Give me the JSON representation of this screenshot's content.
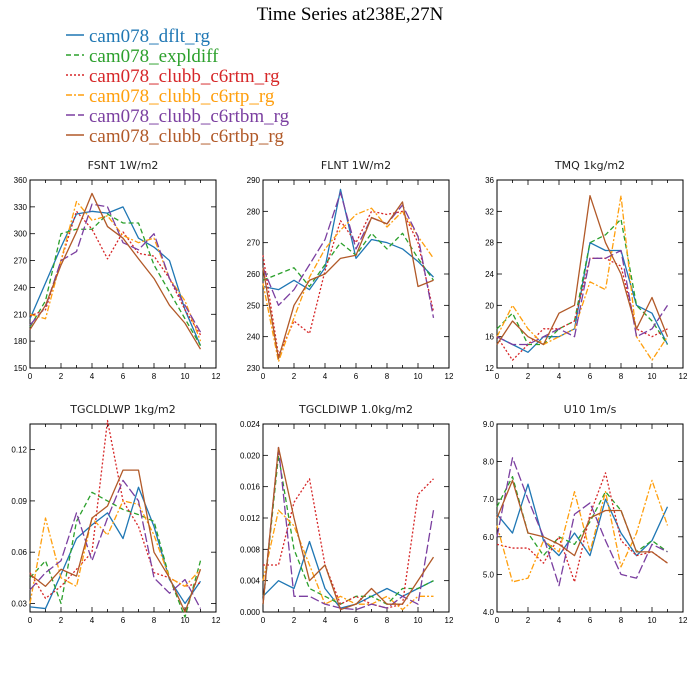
{
  "figure_title": "Time Series at238E,27N",
  "legend": [
    {
      "label": "cam078_dflt_rg",
      "color": "#1f77b4",
      "dash": "solid"
    },
    {
      "label": "cam078_expldiff",
      "color": "#2ca02c",
      "dash": "dashed"
    },
    {
      "label": "cam078_clubb_c6rtm_rg",
      "color": "#d62728",
      "dash": "dotted"
    },
    {
      "label": "cam078_clubb_c6rtp_rg",
      "color": "#ff9f0e",
      "dash": "dashdot"
    },
    {
      "label": "cam078_clubb_c6rtbm_rg",
      "color": "#7b3fa0",
      "dash": "longdash"
    },
    {
      "label": "cam078_clubb_c6rtbp_rg",
      "color": "#b15928",
      "dash": "solid"
    }
  ],
  "chart_data": [
    {
      "type": "line",
      "title": "FSNT 1W/m2",
      "x": [
        0,
        1,
        2,
        3,
        4,
        5,
        6,
        7,
        8,
        9,
        10,
        11
      ],
      "xlim": [
        0,
        12
      ],
      "xticks": [
        "0",
        "2",
        "4",
        "6",
        "8",
        "10",
        "12"
      ],
      "ylim": [
        150,
        360
      ],
      "yticks": [
        "150",
        "180",
        "210",
        "240",
        "270",
        "300",
        "330",
        "360"
      ],
      "series": [
        {
          "values": [
            205,
            245,
            285,
            322,
            325,
            323,
            330,
            295,
            285,
            270,
            215,
            175
          ]
        },
        {
          "values": [
            196,
            225,
            300,
            305,
            305,
            322,
            312,
            312,
            265,
            235,
            205,
            175
          ]
        },
        {
          "values": [
            208,
            215,
            270,
            325,
            305,
            272,
            302,
            278,
            275,
            250,
            215,
            187
          ]
        },
        {
          "values": [
            210,
            205,
            270,
            336,
            315,
            320,
            298,
            290,
            295,
            250,
            225,
            180
          ]
        },
        {
          "values": [
            198,
            218,
            270,
            280,
            333,
            330,
            290,
            282,
            300,
            250,
            220,
            190
          ]
        },
        {
          "values": [
            193,
            220,
            265,
            302,
            345,
            308,
            295,
            272,
            250,
            220,
            200,
            171
          ]
        }
      ]
    },
    {
      "type": "line",
      "title": "FLNT 1W/m2",
      "x": [
        0,
        1,
        2,
        3,
        4,
        5,
        6,
        7,
        8,
        9,
        10,
        11
      ],
      "xlim": [
        0,
        12
      ],
      "xticks": [
        "0",
        "2",
        "4",
        "6",
        "8",
        "10",
        "12"
      ],
      "ylim": [
        230,
        290
      ],
      "yticks": [
        "230",
        "240",
        "250",
        "260",
        "270",
        "280",
        "290"
      ],
      "series": [
        {
          "values": [
            256,
            255,
            258,
            255,
            262,
            287,
            265,
            271,
            270,
            268,
            264,
            259
          ]
        },
        {
          "values": [
            258,
            260,
            262,
            256,
            263,
            270,
            266,
            273,
            268,
            273,
            265,
            258
          ]
        },
        {
          "values": [
            266,
            234,
            245,
            241,
            261,
            277,
            270,
            280,
            279,
            280,
            270,
            248
          ]
        },
        {
          "values": [
            257,
            232,
            246,
            259,
            268,
            274,
            279,
            281,
            275,
            280,
            272,
            265
          ]
        },
        {
          "values": [
            262,
            250,
            255,
            263,
            271,
            286,
            268,
            278,
            276,
            282,
            272,
            246
          ]
        },
        {
          "values": [
            262,
            233,
            250,
            258,
            260,
            265,
            266,
            278,
            276,
            283,
            256,
            258
          ]
        }
      ]
    },
    {
      "type": "line",
      "title": "TMQ 1kg/m2",
      "x": [
        0,
        1,
        2,
        3,
        4,
        5,
        6,
        7,
        8,
        9,
        10,
        11
      ],
      "xlim": [
        0,
        12
      ],
      "xticks": [
        "0",
        "2",
        "4",
        "6",
        "8",
        "10",
        "12"
      ],
      "ylim": [
        12,
        36
      ],
      "yticks": [
        "12",
        "16",
        "20",
        "24",
        "28",
        "32",
        "36"
      ],
      "series": [
        {
          "values": [
            16,
            15,
            14,
            16,
            16,
            17,
            28,
            27,
            27,
            20,
            19,
            15
          ]
        },
        {
          "values": [
            17,
            19,
            15,
            15,
            17,
            18,
            28,
            29,
            31,
            20,
            18,
            15
          ]
        },
        {
          "values": [
            16,
            13,
            15,
            17,
            17,
            18,
            26,
            26,
            25,
            17,
            16,
            17
          ]
        },
        {
          "values": [
            16,
            20,
            17,
            15,
            16,
            17,
            23,
            22,
            34,
            16,
            13,
            16
          ]
        },
        {
          "values": [
            16,
            15,
            15,
            16,
            17,
            16,
            26,
            26,
            27,
            16,
            17,
            20
          ]
        },
        {
          "values": [
            15,
            18,
            16,
            15,
            19,
            20,
            34,
            28,
            24,
            17,
            21,
            16
          ]
        }
      ]
    },
    {
      "type": "line",
      "title": "TGCLDLWP 1kg/m2",
      "x": [
        0,
        1,
        2,
        3,
        4,
        5,
        6,
        7,
        8,
        9,
        10,
        11
      ],
      "xlim": [
        0,
        12
      ],
      "xticks": [
        "0",
        "2",
        "4",
        "6",
        "8",
        "10",
        "12"
      ],
      "ylim": [
        0.025,
        0.135
      ],
      "yticks": [
        "0.03",
        "0.06",
        "0.09",
        "0.12"
      ],
      "ytick_values": [
        0.03,
        0.06,
        0.09,
        0.12
      ],
      "series": [
        {
          "values": [
            0.028,
            0.027,
            0.047,
            0.068,
            0.076,
            0.083,
            0.068,
            0.098,
            0.075,
            0.044,
            0.03,
            0.043
          ]
        },
        {
          "values": [
            0.045,
            0.055,
            0.03,
            0.078,
            0.095,
            0.09,
            0.085,
            0.082,
            0.078,
            0.045,
            0.022,
            0.055
          ]
        },
        {
          "values": [
            0.048,
            0.033,
            0.04,
            0.05,
            0.06,
            0.137,
            0.09,
            0.075,
            0.048,
            0.045,
            0.04,
            0.042
          ]
        },
        {
          "values": [
            0.03,
            0.08,
            0.045,
            0.04,
            0.08,
            0.07,
            0.09,
            0.088,
            0.07,
            0.045,
            0.04,
            0.05
          ]
        },
        {
          "values": [
            0.038,
            0.048,
            0.055,
            0.083,
            0.055,
            0.08,
            0.102,
            0.09,
            0.045,
            0.036,
            0.044,
            0.027
          ]
        },
        {
          "values": [
            0.047,
            0.04,
            0.05,
            0.046,
            0.08,
            0.087,
            0.108,
            0.108,
            0.06,
            0.045,
            0.025,
            0.05
          ]
        }
      ]
    },
    {
      "type": "line",
      "title": "TGCLDIWP 1.0kg/m2",
      "x": [
        0,
        1,
        2,
        3,
        4,
        5,
        6,
        7,
        8,
        9,
        10,
        11
      ],
      "xlim": [
        0,
        12
      ],
      "xticks": [
        "0",
        "2",
        "4",
        "6",
        "8",
        "10",
        "12"
      ],
      "ylim": [
        0,
        0.024
      ],
      "yticks": [
        "0.000",
        "0.004",
        "0.008",
        "0.012",
        "0.016",
        "0.020",
        "0.024"
      ],
      "ytick_values": [
        0,
        0.004,
        0.008,
        0.012,
        0.016,
        0.02,
        0.024
      ],
      "series": [
        {
          "values": [
            0.002,
            0.004,
            0.003,
            0.009,
            0.003,
            0.0005,
            0.001,
            0.002,
            0.003,
            0.002,
            0.003,
            0.004
          ]
        },
        {
          "values": [
            0.001,
            0.02,
            0.008,
            0.003,
            0.002,
            0.001,
            0.002,
            0.002,
            0.001,
            0.003,
            0.003,
            0.004
          ]
        },
        {
          "values": [
            0.006,
            0.006,
            0.014,
            0.017,
            0.006,
            0.001,
            0.002,
            0.001,
            0.0005,
            0.001,
            0.015,
            0.017
          ]
        },
        {
          "values": [
            0.004,
            0.013,
            0.011,
            0.006,
            0.001,
            0.002,
            0.001,
            0.001,
            0.002,
            0.0003,
            0.002,
            0.002
          ]
        },
        {
          "values": [
            0.001,
            0.021,
            0.002,
            0.002,
            0.001,
            0.0005,
            0.0003,
            0.001,
            0.0005,
            0.002,
            0.001,
            0.013
          ]
        },
        {
          "values": [
            0.001,
            0.021,
            0.012,
            0.004,
            0.006,
            0.0003,
            0.001,
            0.003,
            0.001,
            0.001,
            0.004,
            0.007
          ]
        }
      ]
    },
    {
      "type": "line",
      "title": "U10 1m/s",
      "x": [
        0,
        1,
        2,
        3,
        4,
        5,
        6,
        7,
        8,
        9,
        10,
        11
      ],
      "xlim": [
        0,
        12
      ],
      "xticks": [
        "0",
        "2",
        "4",
        "6",
        "8",
        "10",
        "12"
      ],
      "ylim": [
        4,
        9
      ],
      "yticks": [
        "4.0",
        "5.0",
        "6.0",
        "7.0",
        "8.0",
        "9.0"
      ],
      "ytick_values": [
        4,
        5,
        6,
        7,
        8,
        9
      ],
      "series": [
        {
          "values": [
            6.6,
            6.1,
            7.4,
            5.9,
            5.5,
            6.1,
            5.5,
            7.0,
            6.1,
            5.5,
            5.9,
            6.8
          ]
        },
        {
          "values": [
            6.8,
            7.6,
            6.1,
            5.5,
            6.0,
            5.8,
            6.4,
            7.2,
            6.7,
            5.6,
            5.9,
            5.6
          ]
        },
        {
          "values": [
            5.8,
            5.7,
            5.7,
            5.3,
            6.0,
            4.8,
            6.6,
            7.7,
            5.9,
            5.5,
            5.6,
            5.3
          ]
        },
        {
          "values": [
            6.3,
            4.8,
            4.9,
            5.9,
            5.6,
            7.2,
            5.6,
            7.2,
            5.2,
            6.1,
            7.5,
            6.3
          ]
        },
        {
          "values": [
            6.0,
            8.1,
            7.0,
            6.0,
            4.7,
            6.6,
            6.9,
            5.9,
            5.0,
            4.9,
            5.8,
            5.6
          ]
        },
        {
          "values": [
            6.5,
            7.5,
            6.1,
            6.0,
            5.8,
            5.5,
            6.5,
            6.7,
            6.7,
            5.6,
            5.6,
            5.3
          ]
        }
      ]
    }
  ]
}
